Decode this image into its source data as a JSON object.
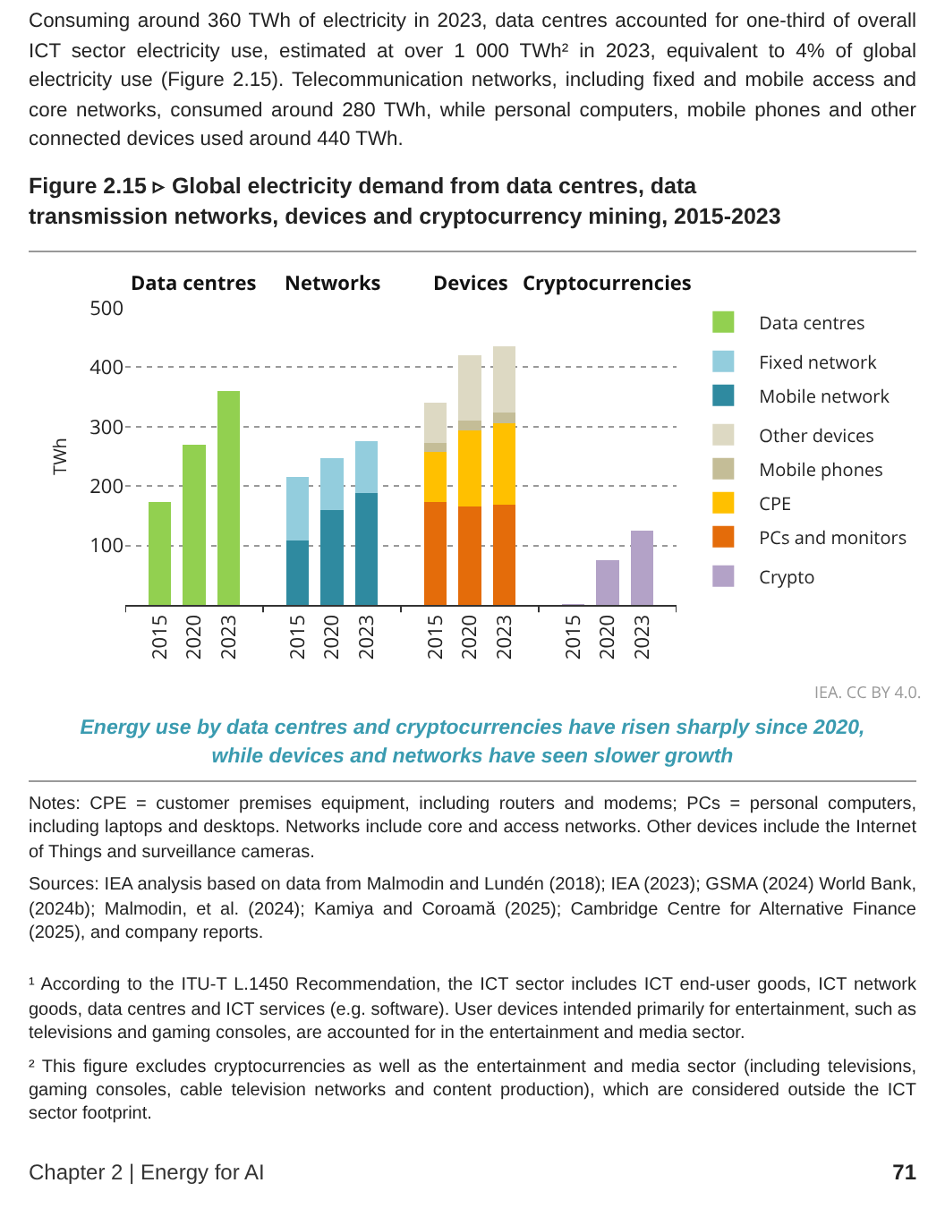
{
  "chart_data": {
    "type": "bar",
    "stacked": true,
    "title": "Figure 2.15 ▹ Global electricity demand from data centres, data transmission networks, devices and cryptocurrency mining, 2015-2023",
    "subtitle": "Energy use by data centres and cryptocurrencies have risen sharply since 2020, while devices and networks have seen slower growth",
    "ylabel": "TWh",
    "categories": [
      "2015",
      "2020",
      "2023",
      null,
      "2015",
      "2020",
      "2023",
      null,
      "2015",
      "2020",
      "2023",
      null,
      "2015",
      "2020",
      "2023"
    ],
    "series": [
      {
        "name": "Data centres",
        "color": "#92d050",
        "values": [
          173,
          269,
          360,
          null,
          null,
          null,
          null,
          null,
          null,
          null,
          null,
          null,
          null,
          null,
          null
        ]
      },
      {
        "name": "Mobile network",
        "color": "#2f8aa0",
        "values": [
          null,
          null,
          null,
          null,
          108,
          160,
          189,
          null,
          null,
          null,
          null,
          null,
          null,
          null,
          null
        ]
      },
      {
        "name": "Fixed network",
        "color": "#93cddd",
        "values": [
          null,
          null,
          null,
          null,
          107,
          87,
          86,
          null,
          null,
          null,
          null,
          null,
          null,
          null,
          null
        ]
      },
      {
        "name": "PCs and monitors",
        "color": "#e46c0a",
        "values": [
          null,
          null,
          null,
          null,
          null,
          null,
          null,
          null,
          173,
          166,
          169,
          null,
          null,
          null,
          null
        ]
      },
      {
        "name": "CPE",
        "color": "#ffc000",
        "values": [
          null,
          null,
          null,
          null,
          null,
          null,
          null,
          null,
          85,
          128,
          136,
          null,
          null,
          null,
          null
        ]
      },
      {
        "name": "Mobile phones",
        "color": "#c4bd97",
        "values": [
          null,
          null,
          null,
          null,
          null,
          null,
          null,
          null,
          15,
          17,
          19,
          null,
          null,
          null,
          null
        ]
      },
      {
        "name": "Other devices",
        "color": "#ddd9c3",
        "values": [
          null,
          null,
          null,
          null,
          null,
          null,
          null,
          null,
          68,
          109,
          112,
          null,
          null,
          null,
          null
        ]
      },
      {
        "name": "Crypto",
        "color": "#b3a2c7",
        "values": [
          null,
          null,
          null,
          null,
          null,
          null,
          null,
          null,
          null,
          null,
          null,
          null,
          2,
          75,
          125
        ]
      }
    ],
    "ylim": [
      0,
      500
    ],
    "yticks": [
      100,
      200,
      300,
      400,
      500
    ],
    "grid": "y",
    "legend": "right",
    "annotations": [
      "Data centres",
      "Networks",
      "Devices",
      "Cryptocurrencies",
      "IEA. CC BY 4.0.",
      "Consuming around 360 TWh of electricity in 2023, data centres accounted for one-third of overall ICT sector electricity use, estimated at over 1 000 TWh² in 2023, equivalent to 4% of global electricity use (Figure 2.15). Telecommunication networks, including fixed and mobile access and core networks, consumed around 280 TWh, while personal computers, mobile phones and other connected devices used around 440 TWh.",
      "Notes: CPE = customer premises equipment, including routers and modems; PCs = personal computers, including laptops and desktops. Networks include core and access networks. Other devices include the Internet of Things and surveillance cameras.",
      "Sources: IEA analysis based on data from Malmodin and Lundén (2018); IEA (2023); GSMA (2024) World Bank, (2024b); Malmodin, et al. (2024); Kamiya and Coroamă (2025); Cambridge Centre for Alternative Finance (2025), and company reports.",
      "¹ According to the ITU-T L.1450 Recommendation, the ICT sector includes ICT end-user goods, ICT network goods, data centres and ICT services (e.g. software). User devices intended primarily for entertainment, such as televisions and gaming consoles, are accounted for in the entertainment and media sector.",
      "² This figure excludes cryptocurrencies as well as the entertainment and media sector (including televisions, gaming consoles, cable television networks and content production), which are considered outside the ICT sector footprint.",
      "Chapter 2 | Energy for AI",
      "71"
    ]
  }
}
